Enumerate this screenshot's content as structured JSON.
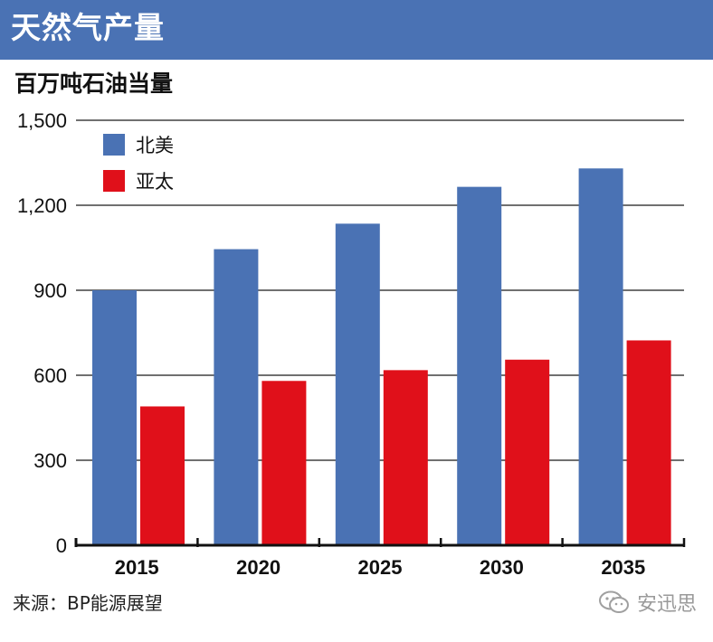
{
  "header": {
    "title": "天然气产量"
  },
  "subtitle": "百万吨石油当量",
  "footer": {
    "source": "来源：BP能源展望",
    "watermark": "安迅思"
  },
  "colors": {
    "north_america": "#4a72b4",
    "asia_pacific": "#e0101a",
    "header": "#4a72b4"
  },
  "icons": {
    "watermark": "wechat-icon"
  },
  "chart_data": {
    "type": "bar",
    "title": "天然气产量",
    "ylabel": "百万吨石油当量",
    "categories": [
      "2015",
      "2020",
      "2025",
      "2030",
      "2035"
    ],
    "series": [
      {
        "name": "北美",
        "color": "#4a72b4",
        "values": [
          900,
          1045,
          1135,
          1265,
          1330
        ]
      },
      {
        "name": "亚太",
        "color": "#e0101a",
        "values": [
          490,
          580,
          618,
          655,
          723
        ]
      }
    ],
    "yticks": [
      "0",
      "300",
      "600",
      "900",
      "1,200",
      "1,500"
    ],
    "ylim": [
      0,
      1500
    ],
    "grid": true,
    "legend_position": "top-left"
  }
}
